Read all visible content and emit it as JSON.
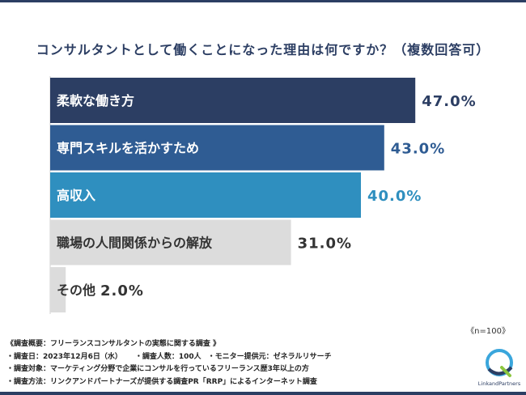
{
  "chart_data": {
    "type": "bar",
    "orientation": "horizontal",
    "title": "コンサルタントとして働くことになった理由は何ですか？（複数回答可）",
    "categories": [
      "柔軟な働き方",
      "専門スキルを活かすため",
      "高収入",
      "職場の人間関係からの解放",
      "その他"
    ],
    "values": [
      47.0,
      43.0,
      40.0,
      31.0,
      2.0
    ],
    "value_labels": [
      "47.0%",
      "43.0%",
      "40.0%",
      "31.0%",
      "2.0%"
    ],
    "bar_colors": [
      "#2c3e63",
      "#2f5c93",
      "#2f8fbf",
      "#dcdcdc",
      "#dcdcdc"
    ],
    "label_colors": [
      "#ffffff",
      "#ffffff",
      "#ffffff",
      "#333333",
      "#333333"
    ],
    "value_colors": [
      "#2c3e63",
      "#2f5c93",
      "#2f8fbf",
      "#333333",
      "#333333"
    ],
    "xlim": [
      0,
      100
    ],
    "grid": false,
    "legend": "none"
  },
  "n_label": "《n=100》",
  "summary": {
    "heading": "《調査概要：フリーランスコンサルタントの実態に関する調査 》",
    "date": "・調査日：2023年12月6日（水）",
    "count": "・調査人数：100人",
    "monitor": "・モニター提供元：ゼネラルリサーチ",
    "target": "・調査対象：マーケティング分野で企業にコンサルを行っているフリーランス歴3年以上の方",
    "method": "・調査方法：リンクアンドパートナーズが提供する調査PR「RRP」によるインターネット調査"
  },
  "logo": {
    "text": "LinkandPartners",
    "colors": [
      "#3aa6dc",
      "#2c3e63",
      "#8cc63f"
    ]
  }
}
